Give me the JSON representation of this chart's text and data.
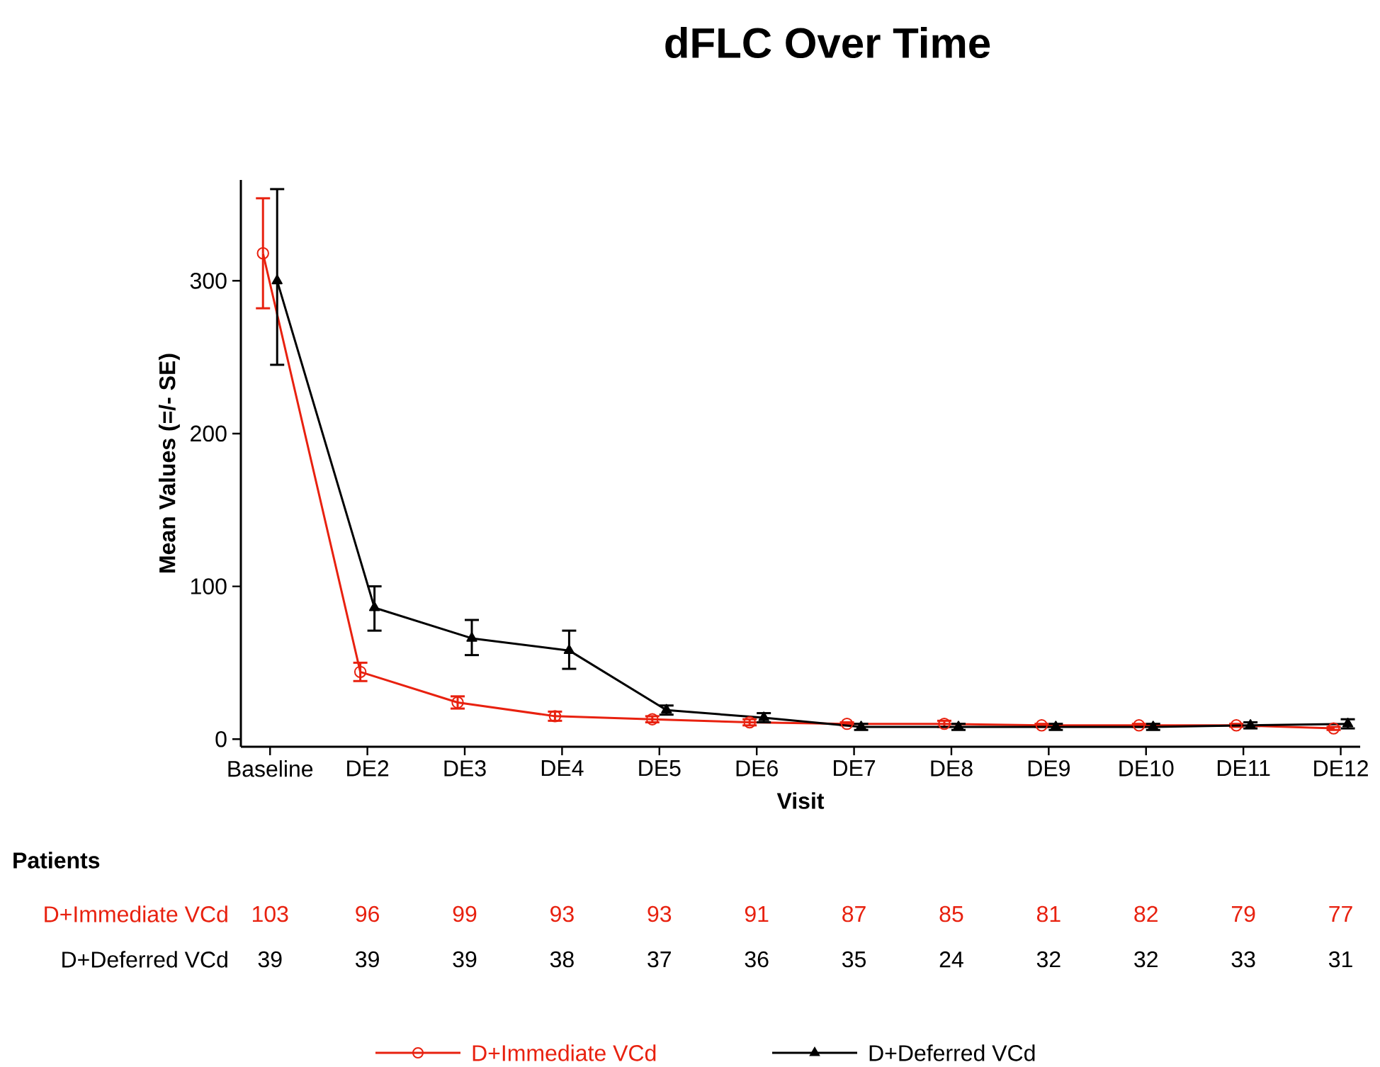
{
  "chart_data": {
    "type": "line",
    "title": "dFLC Over Time",
    "xlabel": "Visit",
    "ylabel": "Mean Values (=/- SE)",
    "categories": [
      "Baseline",
      "DE2",
      "DE3",
      "DE4",
      "DE5",
      "DE6",
      "DE7",
      "DE8",
      "DE9",
      "DE10",
      "DE11",
      "DE12"
    ],
    "ylim": [
      -5,
      366
    ],
    "yticks": [
      0,
      100,
      200,
      300
    ],
    "legend": "bottom",
    "line_style": "solid",
    "series": [
      {
        "name": "D+Immediate VCd",
        "color": "#e8210f",
        "marker": "circle",
        "values": [
          318,
          44,
          24,
          15,
          13,
          11,
          10,
          10,
          9,
          9,
          9,
          7
        ],
        "errors": [
          [
            282,
            354
          ],
          6,
          4,
          3,
          2,
          2,
          1,
          2,
          1,
          1,
          1,
          1
        ]
      },
      {
        "name": "D+Deferred VCd",
        "color": "#000000",
        "marker": "triangle",
        "values": [
          300,
          86,
          66,
          58,
          19,
          14,
          8,
          8,
          8,
          8,
          9,
          10
        ],
        "errors": [
          [
            245,
            360
          ],
          [
            71,
            100
          ],
          [
            55,
            78
          ],
          [
            46,
            71
          ],
          3,
          3,
          2,
          2,
          2,
          2,
          2,
          3
        ]
      }
    ],
    "annotations": [
      "Patients",
      "103",
      "96",
      "99",
      "93",
      "93",
      "91",
      "87",
      "85",
      "81",
      "82",
      "79",
      "77",
      "39",
      "39",
      "39",
      "38",
      "37",
      "36",
      "35",
      "24",
      "32",
      "32",
      "33",
      "31"
    ]
  }
}
